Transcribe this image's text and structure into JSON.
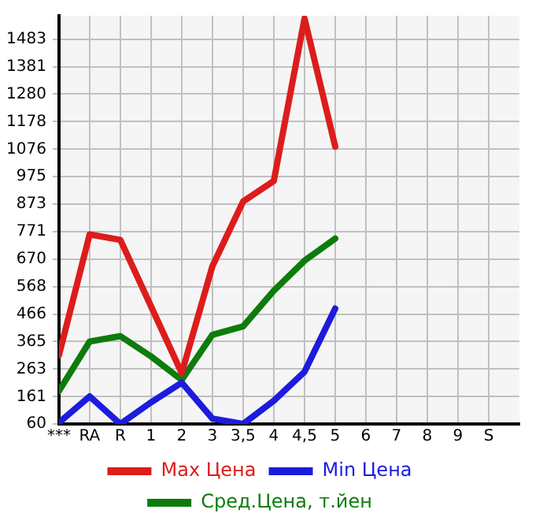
{
  "chart_data": {
    "type": "line",
    "categories": [
      "***",
      "RA",
      "R",
      "1",
      "2",
      "3",
      "3,5",
      "4",
      "4,5",
      "5",
      "6",
      "7",
      "8",
      "9",
      "S"
    ],
    "series": [
      {
        "name": "Max Цена",
        "color": "#dd1c1c",
        "values": [
          314,
          761,
          741,
          495,
          248,
          644,
          883,
          959,
          1560,
          1086,
          null,
          null,
          null,
          null,
          null
        ]
      },
      {
        "name": "Min Цена",
        "color": "#1c1cdd",
        "values": [
          65,
          162,
          60,
          140,
          213,
          80,
          60,
          146,
          253,
          487,
          null,
          null,
          null,
          null,
          null
        ]
      },
      {
        "name": "Сред.Цена, т.йен",
        "color": "#0c7c0c",
        "values": [
          182,
          365,
          385,
          310,
          223,
          390,
          421,
          553,
          664,
          746,
          null,
          null,
          null,
          null,
          null
        ]
      }
    ],
    "ylim": [
      60,
      1570
    ],
    "yticks": [
      60,
      161,
      263,
      365,
      466,
      568,
      670,
      771,
      873,
      975,
      1076,
      1178,
      1280,
      1381,
      1483
    ],
    "grid": true,
    "legend": "bottom",
    "marker": "none",
    "line_style": "solid"
  }
}
